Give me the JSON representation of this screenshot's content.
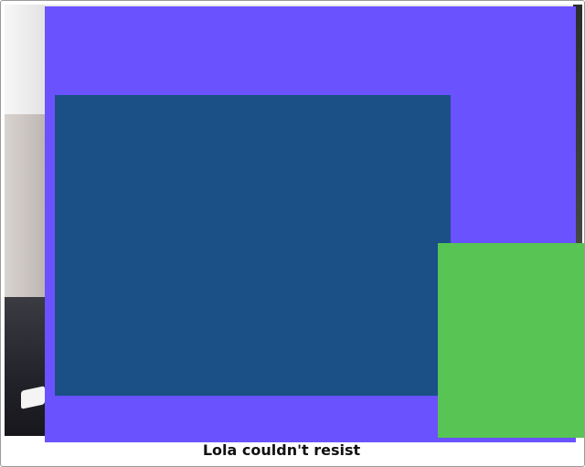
{
  "caption": {
    "text": "Lola couldn't resist"
  },
  "colors": {
    "purple_block": "#6a52fe",
    "blue_block": "#1b5087",
    "green_block": "#58c453",
    "frame_background": "#ffffff",
    "caption_text": "#111111"
  }
}
